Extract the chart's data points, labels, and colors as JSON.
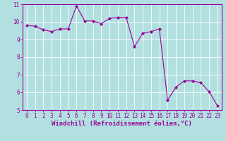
{
  "x": [
    0,
    1,
    2,
    3,
    4,
    5,
    6,
    7,
    8,
    9,
    10,
    11,
    12,
    13,
    14,
    15,
    16,
    17,
    18,
    19,
    20,
    21,
    22,
    23
  ],
  "y": [
    9.8,
    9.75,
    9.55,
    9.45,
    9.6,
    9.6,
    10.9,
    10.05,
    10.05,
    9.9,
    10.2,
    10.25,
    10.25,
    8.6,
    9.35,
    9.45,
    9.6,
    5.55,
    6.3,
    6.65,
    6.65,
    6.55,
    6.05,
    5.25
  ],
  "line_color": "#990099",
  "marker": "D",
  "marker_size": 2.0,
  "background_color": "#b2e0e0",
  "grid_color": "#ffffff",
  "xlabel": "Windchill (Refroidissement éolien,°C)",
  "xlim": [
    -0.5,
    23.5
  ],
  "ylim": [
    5,
    11
  ],
  "yticks": [
    5,
    6,
    7,
    8,
    9,
    10,
    11
  ],
  "xticks": [
    0,
    1,
    2,
    3,
    4,
    5,
    6,
    7,
    8,
    9,
    10,
    11,
    12,
    13,
    14,
    15,
    16,
    17,
    18,
    19,
    20,
    21,
    22,
    23
  ],
  "tick_label_fontsize": 5.5,
  "xlabel_fontsize": 6.5,
  "tick_color": "#990099",
  "label_color": "#990099",
  "spine_color": "#990099",
  "linewidth": 0.8
}
